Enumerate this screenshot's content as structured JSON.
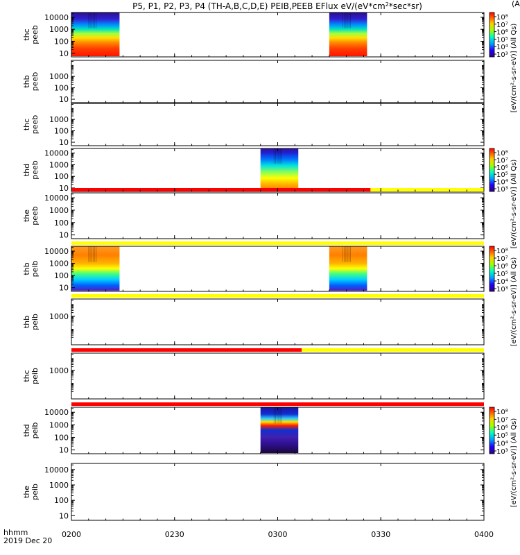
{
  "chart_data": {
    "type": "heatmap",
    "title": "P5, P1, P2, P3, P4 (TH-A,B,C,D,E) PEIB,PEEB EFlux eV/(eV*cm²*sec*sr)",
    "title_parts": [
      "P5, P1, P2, P3, P4 (TH-A,B,C,D,E) PEIB,PEEB EFlux eV/(eV*cm",
      "2",
      "*sec*sr)"
    ],
    "right_title_fragment": "(A",
    "x_axis": {
      "label_top": "hhmm",
      "label_bottom": "2019 Dec 20",
      "range": [
        "0200",
        "0400"
      ],
      "ticks": [
        "0200",
        "0230",
        "0300",
        "0330",
        "0400"
      ]
    },
    "panels": [
      {
        "line1": "thc",
        "line2": "peeb",
        "yticks": [
          "10000",
          "1000",
          "100",
          "10"
        ],
        "segments": [
          {
            "start": "0200",
            "end": "0214",
            "profile": "electron"
          },
          {
            "start": "0315",
            "end": "0326",
            "profile": "electron"
          }
        ],
        "bar": null
      },
      {
        "line1": "thb",
        "line2": "peeb",
        "yticks": [
          "1000",
          "100",
          "10"
        ],
        "segments": [],
        "bar": null
      },
      {
        "line1": "thc",
        "line2": "peeb",
        "yticks": [
          "1000",
          "100",
          "10"
        ],
        "segments": [],
        "bar": null
      },
      {
        "line1": "thd",
        "line2": "peeb",
        "yticks": [
          "10000",
          "1000",
          "100",
          "10"
        ],
        "segments": [
          {
            "start": "0255",
            "end": "0306",
            "profile": "electron2"
          }
        ],
        "bar": null
      },
      {
        "line1": "the",
        "line2": "peeb",
        "yticks": [
          "10000",
          "1000",
          "100",
          "10"
        ],
        "segments": [],
        "bar": [
          {
            "start": "0200",
            "end": "0327",
            "color": "red"
          },
          {
            "start": "0327",
            "end": "0400",
            "color": "yellow"
          }
        ]
      },
      {
        "line1": "thb",
        "line2": "peib",
        "yticks": [
          "10000",
          "1000",
          "100",
          "10"
        ],
        "segments": [
          {
            "start": "0200",
            "end": "0214",
            "profile": "ion"
          },
          {
            "start": "0315",
            "end": "0326",
            "profile": "ion"
          }
        ],
        "bar": [
          {
            "start": "0200",
            "end": "0400",
            "color": "yellow"
          }
        ]
      },
      {
        "line1": "thb",
        "line2": "peib",
        "yticks": [
          "1000"
        ],
        "segments": [],
        "bar": [
          {
            "start": "0200",
            "end": "0400",
            "color": "yellow"
          }
        ]
      },
      {
        "line1": "thc",
        "line2": "peib",
        "yticks": [
          "1000"
        ],
        "segments": [],
        "bar": [
          {
            "start": "0200",
            "end": "0307",
            "color": "red"
          },
          {
            "start": "0307",
            "end": "0400",
            "color": "yellow"
          }
        ]
      },
      {
        "line1": "thd",
        "line2": "peib",
        "yticks": [
          "10000",
          "1000",
          "100",
          "10"
        ],
        "segments": [
          {
            "start": "0255",
            "end": "0306",
            "profile": "ion2"
          }
        ],
        "bar": [
          {
            "start": "0200",
            "end": "0400",
            "color": "red"
          }
        ]
      },
      {
        "line1": "the",
        "line2": "peib",
        "yticks": [
          "10000",
          "1000",
          "100",
          "10"
        ],
        "segments": [],
        "bar": null
      }
    ],
    "colorbars": [
      {
        "panel": 0,
        "labels": [
          "10⁸",
          "10⁷",
          "10⁶",
          "10⁵",
          "10⁴",
          "10³"
        ],
        "text": "[eV/(cm²-s-sr-eV)] (All Qs)"
      },
      {
        "panel": 3,
        "labels": [
          "10⁸",
          "10⁷",
          "10⁶",
          "10⁵",
          "10⁴",
          "10³"
        ],
        "text": "[eV/(cm²-s-sr-eV)] (All Qs)"
      },
      {
        "panel": 5,
        "labels": [
          "10⁸",
          "10⁷",
          "10⁶",
          "10⁵",
          "10⁴",
          "10³"
        ],
        "text": "[eV/(cm²-s-sr-eV)] (All Qs)"
      },
      {
        "panel": 8,
        "labels": [
          "10⁸",
          "10⁷",
          "10⁶",
          "10⁵",
          "10⁴",
          "10³"
        ],
        "text": "[eV/(cm²-s-sr-eV)] (All Qs)"
      }
    ],
    "bar_colors": {
      "red": "#ff0000",
      "yellow": "#ffff00"
    }
  }
}
